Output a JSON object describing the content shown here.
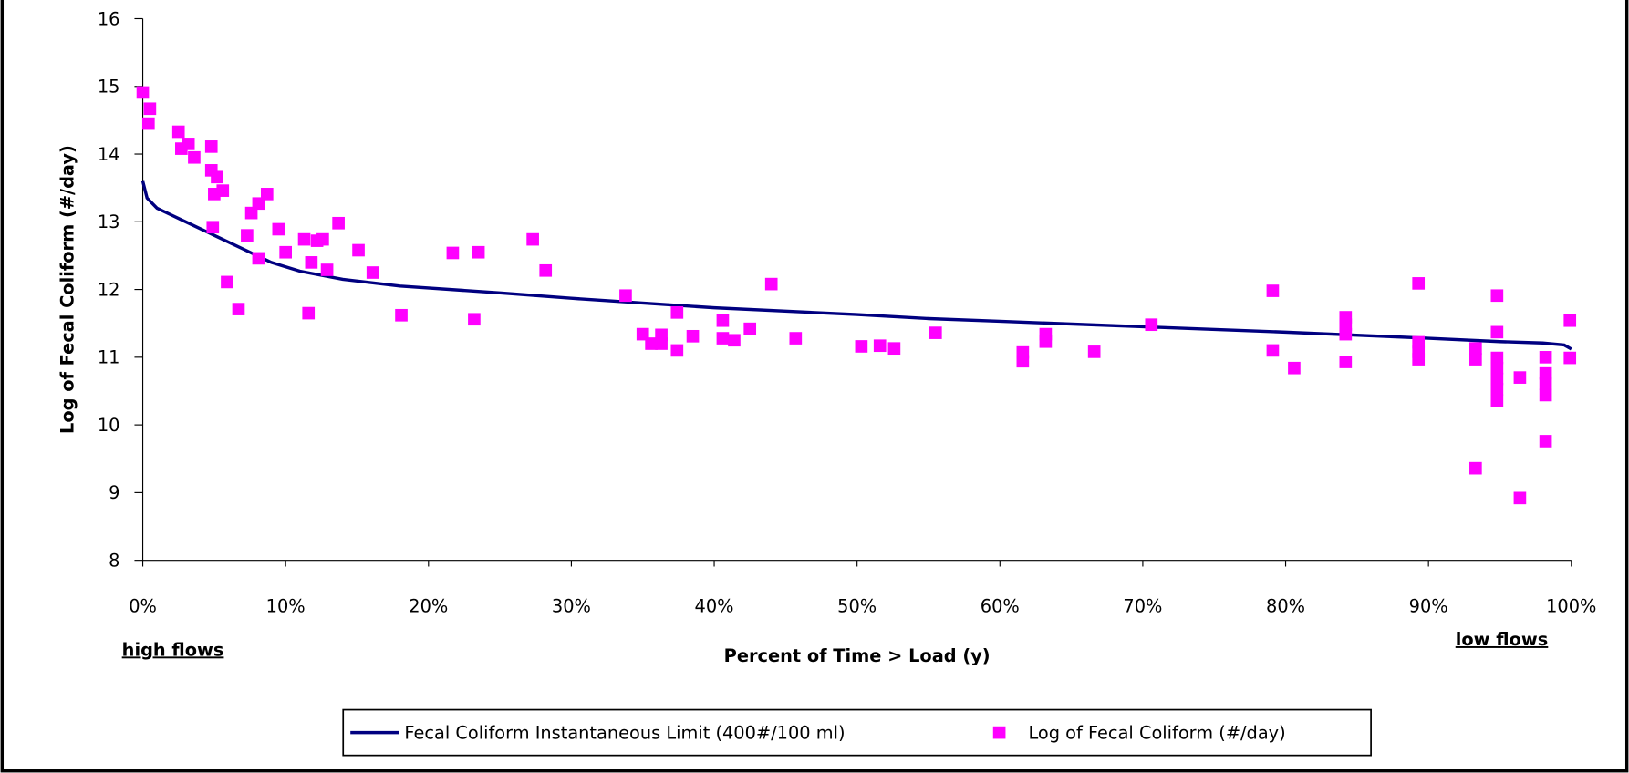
{
  "chart_data": {
    "type": "combo",
    "x_label": "Percent of Time > Load (y)",
    "y_label": "Log of Fecal Coliform (#/day)",
    "annotations": [
      "high flows",
      "low flows"
    ],
    "xlim": [
      0,
      100
    ],
    "xticks": [
      {
        "value": 0,
        "label": "0%"
      },
      {
        "value": 10,
        "label": "10%"
      },
      {
        "value": 20,
        "label": "20%"
      },
      {
        "value": 30,
        "label": "30%"
      },
      {
        "value": 40,
        "label": "40%"
      },
      {
        "value": 50,
        "label": "50%"
      },
      {
        "value": 60,
        "label": "60%"
      },
      {
        "value": 70,
        "label": "70%"
      },
      {
        "value": 80,
        "label": "80%"
      },
      {
        "value": 90,
        "label": "90%"
      },
      {
        "value": 100,
        "label": "100%"
      }
    ],
    "ylim": [
      8,
      16
    ],
    "yticks": [
      8,
      9,
      10,
      11,
      12,
      13,
      14,
      15,
      16
    ],
    "grid": false,
    "legend": "bottom",
    "series": [
      {
        "name": "Fecal Coliform Instantaneous Limit (400#/100 ml)",
        "type": "line",
        "color": "#000080",
        "x": [
          0,
          0.3,
          1,
          2,
          3,
          5,
          7,
          9,
          11,
          14,
          18,
          25,
          30,
          40,
          50,
          55,
          60,
          70,
          80,
          90,
          95,
          98,
          99.5,
          100
        ],
        "y": [
          13.6,
          13.35,
          13.2,
          13.1,
          13.0,
          12.8,
          12.6,
          12.4,
          12.27,
          12.15,
          12.05,
          11.95,
          11.87,
          11.73,
          11.63,
          11.57,
          11.53,
          11.45,
          11.37,
          11.28,
          11.23,
          11.21,
          11.18,
          11.12
        ]
      },
      {
        "name": "Log of Fecal Coliform (#/day)",
        "type": "scatter",
        "color": "#ff00ff",
        "x": [
          0,
          0.5,
          0.4,
          2.5,
          2.7,
          3.2,
          3.6,
          4.8,
          4.8,
          5.2,
          5.6,
          5.0,
          4.9,
          7.6,
          8.1,
          8.7,
          7.3,
          8.1,
          5.9,
          6.7,
          9.5,
          10.0,
          11.3,
          12.2,
          12.6,
          11.8,
          12.9,
          11.6,
          13.7,
          15.1,
          16.1,
          18.1,
          21.7,
          23.5,
          23.2,
          27.3,
          28.2,
          33.8,
          35.0,
          35.6,
          36.3,
          36.3,
          37.4,
          37.4,
          38.5,
          40.6,
          40.6,
          41.4,
          42.5,
          44.0,
          45.7,
          50.3,
          51.6,
          52.6,
          55.5,
          61.6,
          61.6,
          63.2,
          63.2,
          66.6,
          70.6,
          79.1,
          79.1,
          80.6,
          84.2,
          84.2,
          84.2,
          84.2,
          89.3,
          89.3,
          89.3,
          89.3,
          93.3,
          93.3,
          93.3,
          94.8,
          94.8,
          94.8,
          94.8,
          94.8,
          94.8,
          94.8,
          96.4,
          96.4,
          98.2,
          98.2,
          98.2,
          98.2,
          98.2,
          99.9,
          99.9
        ],
        "y": [
          14.91,
          14.67,
          14.45,
          14.33,
          14.08,
          14.15,
          13.95,
          14.11,
          13.76,
          13.66,
          13.46,
          13.41,
          12.92,
          13.13,
          13.27,
          13.41,
          12.8,
          12.46,
          12.11,
          11.71,
          12.89,
          12.55,
          12.74,
          12.72,
          12.74,
          12.4,
          12.29,
          11.65,
          12.98,
          12.58,
          12.25,
          11.62,
          12.54,
          12.55,
          11.56,
          12.74,
          12.28,
          11.91,
          11.34,
          11.2,
          11.2,
          11.33,
          11.66,
          11.1,
          11.31,
          11.54,
          11.28,
          11.25,
          11.42,
          12.08,
          11.28,
          11.16,
          11.17,
          11.13,
          11.36,
          11.07,
          10.94,
          11.34,
          11.23,
          11.08,
          11.48,
          11.98,
          11.1,
          10.84,
          11.59,
          11.48,
          11.34,
          10.93,
          12.09,
          11.22,
          11.08,
          10.97,
          11.13,
          10.97,
          9.36,
          11.91,
          11.37,
          10.99,
          10.84,
          10.68,
          10.53,
          10.36,
          10.7,
          8.92,
          11.0,
          10.76,
          10.61,
          10.44,
          9.76,
          11.54,
          10.99
        ]
      }
    ]
  }
}
